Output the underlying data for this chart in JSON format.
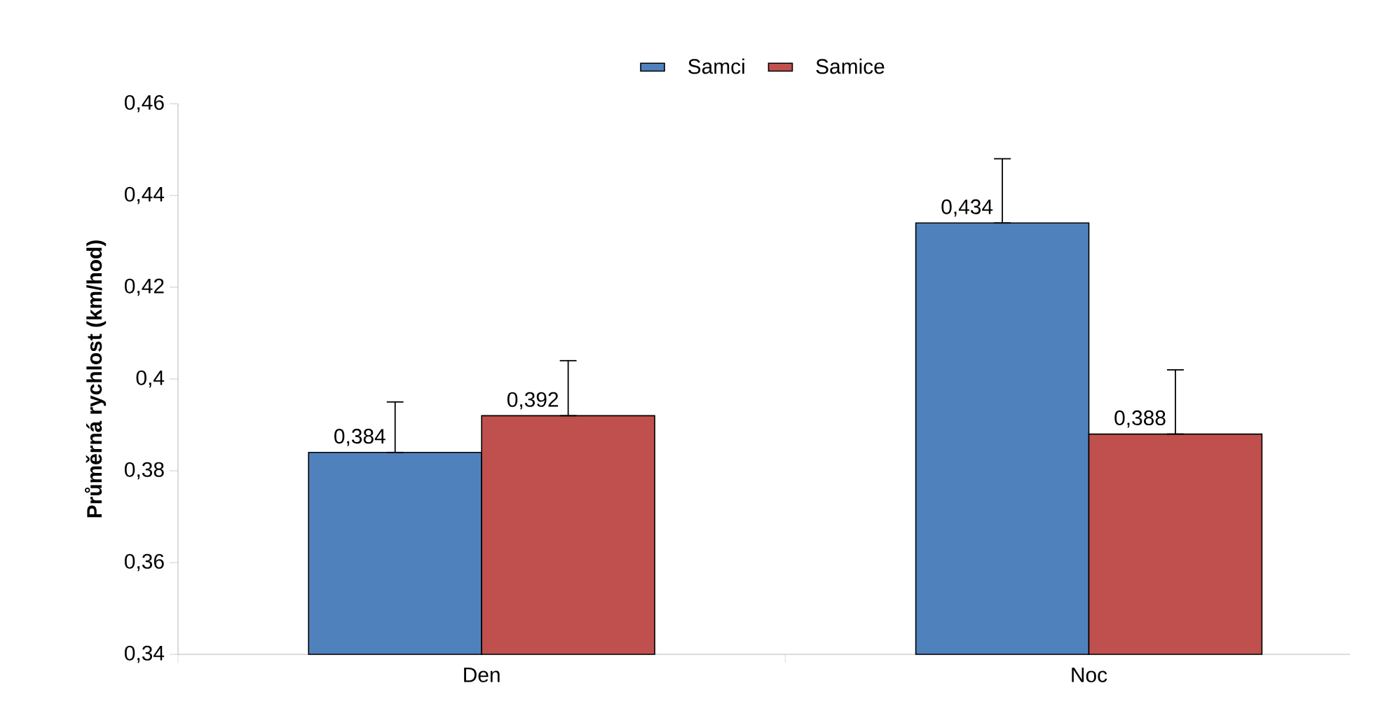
{
  "chart_data": {
    "type": "bar",
    "ylabel": "Průměrná rychlost (km/hod)",
    "categories": [
      "Den",
      "Noc"
    ],
    "series": [
      {
        "name": "Samci",
        "color": "#4f81bd",
        "values": [
          0.384,
          0.434
        ],
        "value_labels": [
          "0,384",
          "0,434"
        ],
        "errors": [
          [
            0.384,
            0.395
          ],
          [
            0.434,
            0.448
          ]
        ]
      },
      {
        "name": "Samice",
        "color": "#c0504d",
        "values": [
          0.392,
          0.388
        ],
        "value_labels": [
          "0,392",
          "0,388"
        ],
        "errors": [
          [
            0.392,
            0.404
          ],
          [
            0.388,
            0.402
          ]
        ]
      }
    ],
    "ylim": [
      0.34,
      0.46
    ],
    "yticks": [
      {
        "value": 0.34,
        "label": "0,34"
      },
      {
        "value": 0.36,
        "label": "0,36"
      },
      {
        "value": 0.38,
        "label": "0,38"
      },
      {
        "value": 0.4,
        "label": "0,4"
      },
      {
        "value": 0.42,
        "label": "0,42"
      },
      {
        "value": 0.44,
        "label": "0,44"
      },
      {
        "value": 0.46,
        "label": "0,46"
      }
    ],
    "legend": "top",
    "grid": false
  }
}
